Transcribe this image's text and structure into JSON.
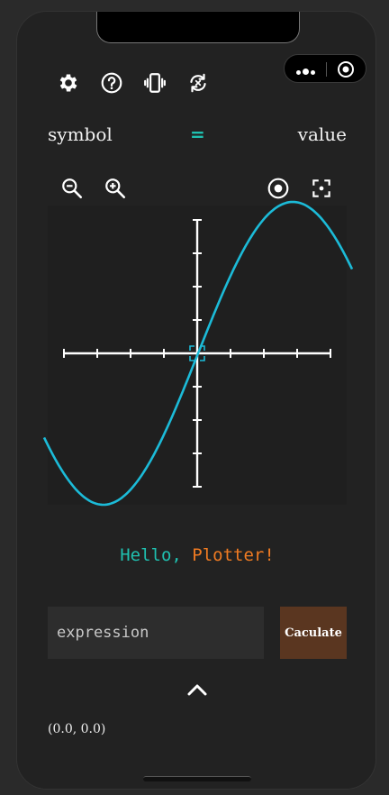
{
  "capsule": {
    "menu_icon": "more-dots-icon",
    "close_icon": "target-circle-icon"
  },
  "toolbar": {
    "items": [
      {
        "icon": "gear-icon"
      },
      {
        "icon": "help-circle-icon"
      },
      {
        "icon": "vibrate-icon"
      },
      {
        "icon": "sync-icon"
      }
    ]
  },
  "header": {
    "symbol": "symbol",
    "equals": "=",
    "value": "value"
  },
  "zoom": {
    "zoom_out": "zoom-out-icon",
    "zoom_in": "zoom-in-icon",
    "center": "crosshair-circle-icon",
    "fit": "fit-screen-icon"
  },
  "plot": {
    "curve_color": "#1cbbd8",
    "axis_color": "#ffffff",
    "origin_marker_color": "#1cbbd8"
  },
  "greeting": {
    "part1": "Hello, ",
    "part2": "Plotter!"
  },
  "input": {
    "placeholder": "expression",
    "value": ""
  },
  "calculate_label": "Caculate",
  "coords_text": "(0.0, 0.0)",
  "colors": {
    "accent_teal": "#1fc0b0",
    "accent_orange": "#f07b22",
    "button_brown": "#5a3620"
  }
}
